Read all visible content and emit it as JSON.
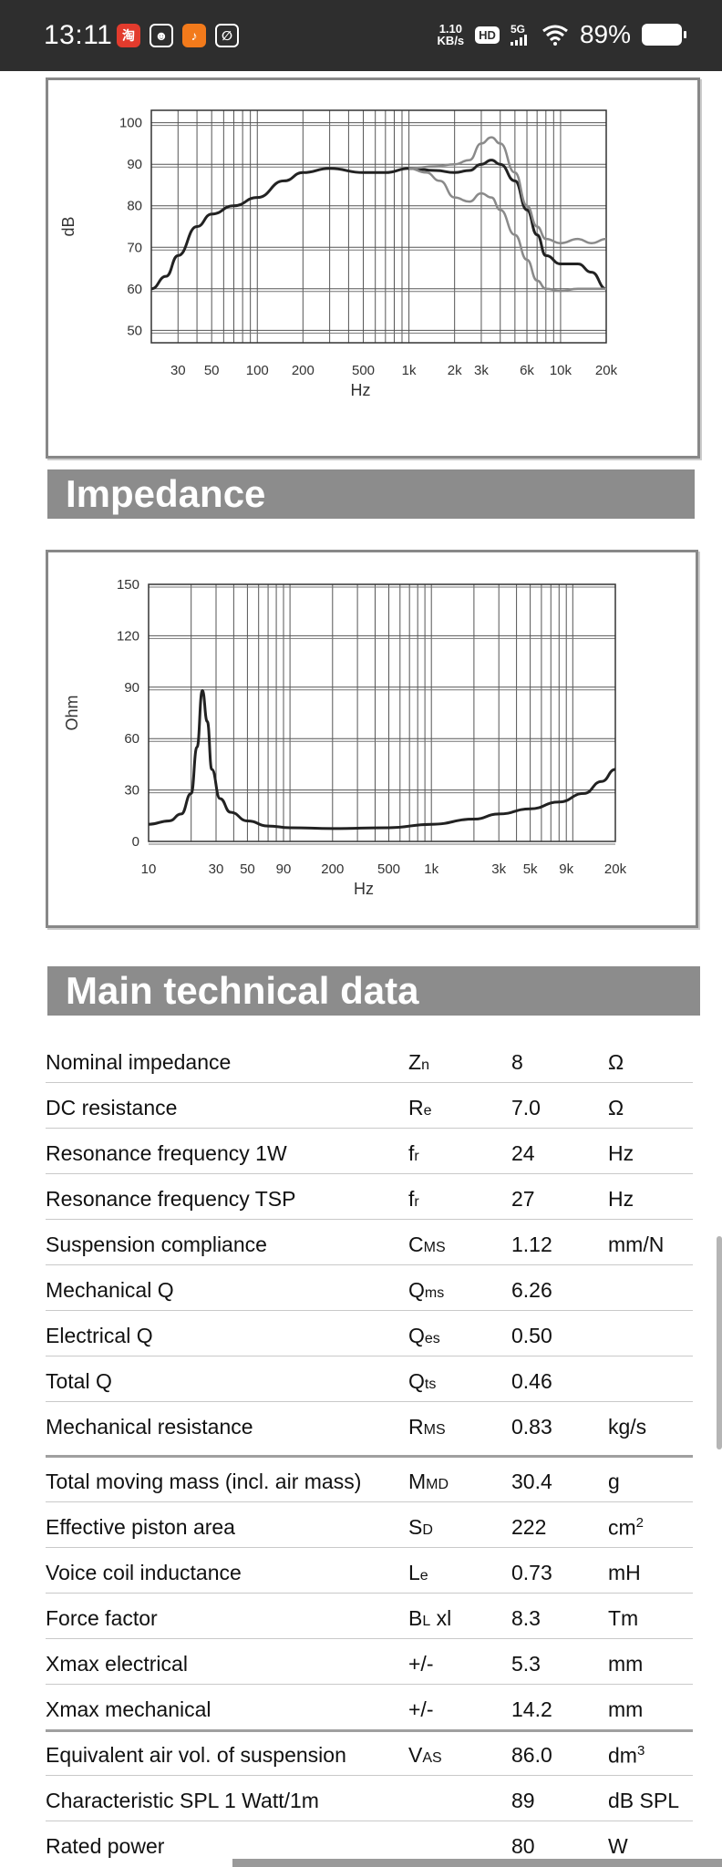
{
  "status_bar": {
    "time": "13:11",
    "net_speed_value": "1.10",
    "net_speed_unit": "KB/s",
    "hd_label": "HD",
    "net_type": "5G",
    "battery_percent": "89%",
    "app_icons": [
      "taobao-app-icon",
      "chat-app-icon",
      "music-app-icon",
      "link-app-icon"
    ],
    "app_icon_glyphs": [
      "淘",
      "☻",
      "♪",
      "∅"
    ],
    "app_icon_colors": [
      "#e23b2d",
      "#2e2e2e",
      "#f27a1b",
      "#2e2e2e"
    ]
  },
  "frequency_chart": {
    "chart_data": {
      "type": "line",
      "title": "",
      "xlabel": "Hz",
      "ylabel": "dB",
      "x_scale": "log",
      "xlim": [
        20,
        20000
      ],
      "ylim": [
        47,
        103
      ],
      "y_ticks": [
        100,
        90,
        80,
        70,
        60,
        50
      ],
      "y_tick_labels": [
        "100",
        "90",
        "80",
        "70",
        "60",
        "50"
      ],
      "x_tick_values": [
        30,
        50,
        100,
        200,
        500,
        1000,
        2000,
        3000,
        6000,
        10000,
        20000
      ],
      "x_tick_labels": [
        "30",
        "50",
        "100",
        "200",
        "500",
        "1k",
        "2k",
        "3k",
        "6k",
        "10k",
        "20k"
      ],
      "grid": true,
      "series": [
        {
          "name": "on-axis",
          "color": "#222222",
          "x": [
            20,
            25,
            30,
            40,
            50,
            70,
            100,
            150,
            200,
            300,
            500,
            700,
            1000,
            1500,
            2000,
            2500,
            3000,
            3500,
            4000,
            5000,
            6000,
            7000,
            8000,
            10000,
            13000,
            16000,
            20000
          ],
          "y": [
            60,
            63,
            68,
            75,
            78,
            80,
            82,
            86,
            88,
            89,
            88,
            88,
            89,
            88.5,
            88,
            88.5,
            90,
            91,
            90,
            86,
            79,
            73,
            68,
            66,
            66,
            64,
            60
          ]
        },
        {
          "name": "off-axis-30",
          "color": "#8a8a8a",
          "x": [
            1000,
            1500,
            2000,
            2500,
            3000,
            3500,
            4000,
            5000,
            6000,
            7000,
            8000,
            10000,
            13000,
            16000,
            20000
          ],
          "y": [
            89,
            89.5,
            90,
            91,
            95,
            96.5,
            95,
            88,
            80,
            75,
            72,
            71,
            72,
            71,
            72
          ]
        },
        {
          "name": "off-axis-60",
          "color": "#8a8a8a",
          "x": [
            1000,
            1300,
            1600,
            2000,
            2500,
            3000,
            3500,
            4000,
            5000,
            6000,
            7000,
            8000,
            10000,
            13000,
            16000,
            20000
          ],
          "y": [
            89,
            88,
            86,
            82,
            81,
            83,
            82,
            79,
            73,
            67,
            62,
            60,
            59.5,
            60,
            60,
            60
          ]
        }
      ]
    }
  },
  "impedance_section": {
    "title": "Impedance"
  },
  "impedance_chart": {
    "chart_data": {
      "type": "line",
      "title": "",
      "xlabel": "Hz",
      "ylabel": "Ohm",
      "x_scale": "log",
      "xlim": [
        10,
        20000
      ],
      "ylim": [
        0,
        150
      ],
      "y_ticks": [
        150,
        120,
        90,
        60,
        30,
        0
      ],
      "y_tick_labels": [
        "150",
        "120",
        "90",
        "60",
        "30",
        "0"
      ],
      "x_tick_values": [
        10,
        30,
        50,
        90,
        200,
        500,
        1000,
        3000,
        5000,
        9000,
        20000
      ],
      "x_tick_labels": [
        "10",
        "30",
        "50",
        "90",
        "200",
        "500",
        "1k",
        "3k",
        "5k",
        "9k",
        "20k"
      ],
      "grid": true,
      "series": [
        {
          "name": "impedance",
          "color": "#222222",
          "x": [
            10,
            14,
            17,
            20,
            22,
            24,
            26,
            28,
            32,
            38,
            50,
            70,
            100,
            200,
            500,
            1000,
            2000,
            3000,
            5000,
            8000,
            12000,
            16000,
            20000
          ],
          "y": [
            10,
            12,
            16,
            28,
            55,
            88,
            70,
            42,
            25,
            17,
            12,
            9,
            8,
            7.5,
            8,
            10,
            13,
            16,
            19,
            23,
            28,
            35,
            42
          ]
        }
      ]
    }
  },
  "main_data": {
    "title": "Main technical data",
    "rows": [
      {
        "name": "Nominal impedance",
        "sym": "Z",
        "sub": "n",
        "sup": "",
        "value": "8",
        "unit": "Ω",
        "unit_sup": ""
      },
      {
        "name": "DC resistance",
        "sym": "R",
        "sub": "e",
        "sup": "",
        "value": "7.0",
        "unit": "Ω",
        "unit_sup": ""
      },
      {
        "name": "Resonance frequency 1W",
        "sym": "f",
        "sub": "r",
        "sup": "",
        "value": "24",
        "unit": "Hz",
        "unit_sup": ""
      },
      {
        "name": "Resonance frequency TSP",
        "sym": "f",
        "sub": "r",
        "sup": "",
        "value": "27",
        "unit": "Hz",
        "unit_sup": ""
      },
      {
        "name": "Suspension compliance",
        "sym": "C",
        "sub": "MS",
        "sup": "",
        "value": "1.12",
        "unit": "mm/N",
        "unit_sup": ""
      },
      {
        "name": "Mechanical Q",
        "sym": "Q",
        "sub": "ms",
        "sup": "",
        "value": "6.26",
        "unit": "",
        "unit_sup": ""
      },
      {
        "name": "Electrical Q",
        "sym": "Q",
        "sub": "es",
        "sup": "",
        "value": "0.50",
        "unit": "",
        "unit_sup": ""
      },
      {
        "name": "Total Q",
        "sym": "Q",
        "sub": "ts",
        "sup": "",
        "value": "0.46",
        "unit": "",
        "unit_sup": ""
      },
      {
        "name": "Mechanical resistance",
        "sym": "R",
        "sub": "MS",
        "sup": "",
        "value": "0.83",
        "unit": "kg/s",
        "unit_sup": ""
      },
      {
        "name": "Total moving mass (incl. air mass)",
        "sym": "M",
        "sub": "MD",
        "sup": "",
        "value": "30.4",
        "unit": "g",
        "unit_sup": ""
      },
      {
        "name": "Effective piston area",
        "sym": "S",
        "sub": "D",
        "sup": "",
        "value": "222",
        "unit": "cm",
        "unit_sup": "2"
      },
      {
        "name": "Voice coil inductance",
        "sym": "L",
        "sub": "e",
        "sup": "",
        "value": "0.73",
        "unit": "mH",
        "unit_sup": ""
      },
      {
        "name": "Force factor",
        "sym": "B",
        "sub": "L",
        "sup": "",
        "sym_tail": " xl",
        "value": "8.3",
        "unit": "Tm",
        "unit_sup": ""
      },
      {
        "name": "Xmax electrical",
        "sym": "+/-",
        "sub": "",
        "sup": "",
        "value": "5.3",
        "unit": "mm",
        "unit_sup": ""
      },
      {
        "name": "Xmax mechanical",
        "sym": "+/-",
        "sub": "",
        "sup": "",
        "value": "14.2",
        "unit": "mm",
        "unit_sup": ""
      },
      {
        "name": "Equivalent air vol. of suspension",
        "sym": "V",
        "sub": "AS",
        "sup": "",
        "value": "86.0",
        "unit": "dm",
        "unit_sup": "3"
      },
      {
        "name": "Characteristic SPL 1 Watt/1m",
        "sym": "",
        "sub": "",
        "sup": "",
        "value": "89",
        "unit": "dB SPL",
        "unit_sup": ""
      },
      {
        "name": "Rated power",
        "sym": "",
        "sub": "",
        "sup": "",
        "value": "80",
        "unit": "W",
        "unit_sup": ""
      }
    ]
  }
}
